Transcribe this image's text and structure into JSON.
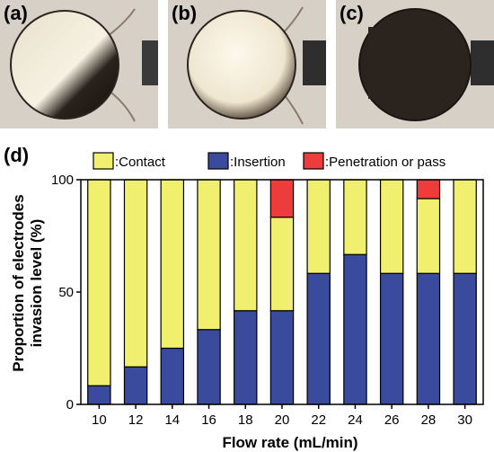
{
  "panels": {
    "a": {
      "label": "(a)"
    },
    "b": {
      "label": "(b)"
    },
    "c": {
      "label": "(c)"
    },
    "d": {
      "label": "(d)"
    }
  },
  "chart_data": {
    "type": "bar",
    "stacked": true,
    "categories": [
      "10",
      "12",
      "14",
      "16",
      "18",
      "20",
      "22",
      "24",
      "26",
      "28",
      "30"
    ],
    "series": [
      {
        "name": ":Insertion",
        "color": "#3a4a9c",
        "values": [
          8.3,
          16.7,
          25,
          33.3,
          41.7,
          41.7,
          58.3,
          66.7,
          58.3,
          58.3,
          58.3
        ]
      },
      {
        "name": ":Contact",
        "color": "#f0ef6e",
        "values": [
          91.7,
          83.3,
          75,
          66.7,
          58.3,
          41.6,
          41.7,
          33.3,
          41.7,
          33.3,
          41.7
        ]
      },
      {
        "name": ":Penetration or pass",
        "color": "#ee3b3b",
        "values": [
          0,
          0,
          0,
          0,
          0,
          16.7,
          0,
          0,
          0,
          8.4,
          0
        ]
      }
    ],
    "legend_order": [
      ":Contact",
      ":Insertion",
      ":Penetration or pass"
    ],
    "legend_position": "top",
    "xlabel": "Flow rate (mL/min)",
    "ylabel_line1": "Proportion of electrodes",
    "ylabel_line2": "invasion level (%)",
    "ylim": [
      0,
      100
    ],
    "yticks": [
      "0",
      "50",
      "100"
    ]
  }
}
